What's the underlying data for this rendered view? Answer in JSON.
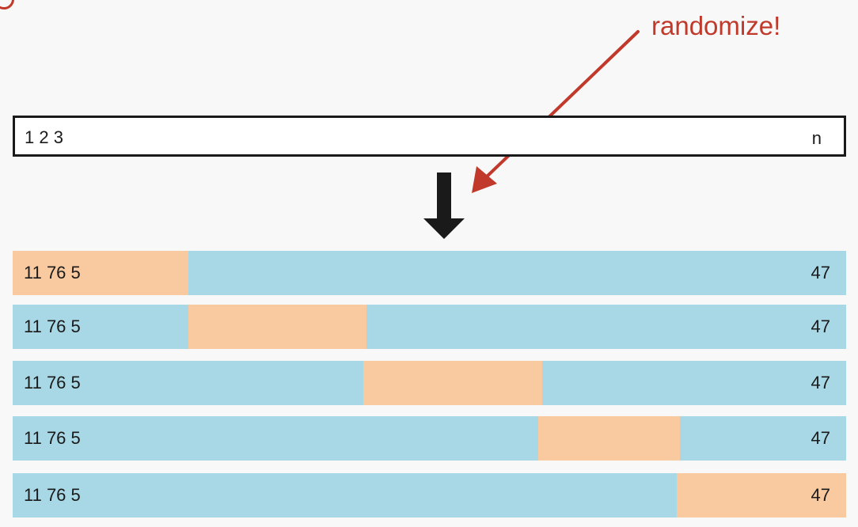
{
  "annotation": {
    "text": "randomize!",
    "color": "#c0392b"
  },
  "dataset": {
    "start_label": "1 2 3",
    "end_label": "n"
  },
  "folds": [
    {
      "start_label": "11 76 5",
      "end_label": "47",
      "test_fold_index": 1
    },
    {
      "start_label": "11 76 5",
      "end_label": "47",
      "test_fold_index": 2
    },
    {
      "start_label": "11 76 5",
      "end_label": "47",
      "test_fold_index": 3
    },
    {
      "start_label": "11 76 5",
      "end_label": "47",
      "test_fold_index": 4
    },
    {
      "start_label": "11 76 5",
      "end_label": "47",
      "test_fold_index": 5
    }
  ],
  "colors": {
    "train": "#a8d8e6",
    "test": "#f9c9a0",
    "border": "#1a1a1a"
  }
}
